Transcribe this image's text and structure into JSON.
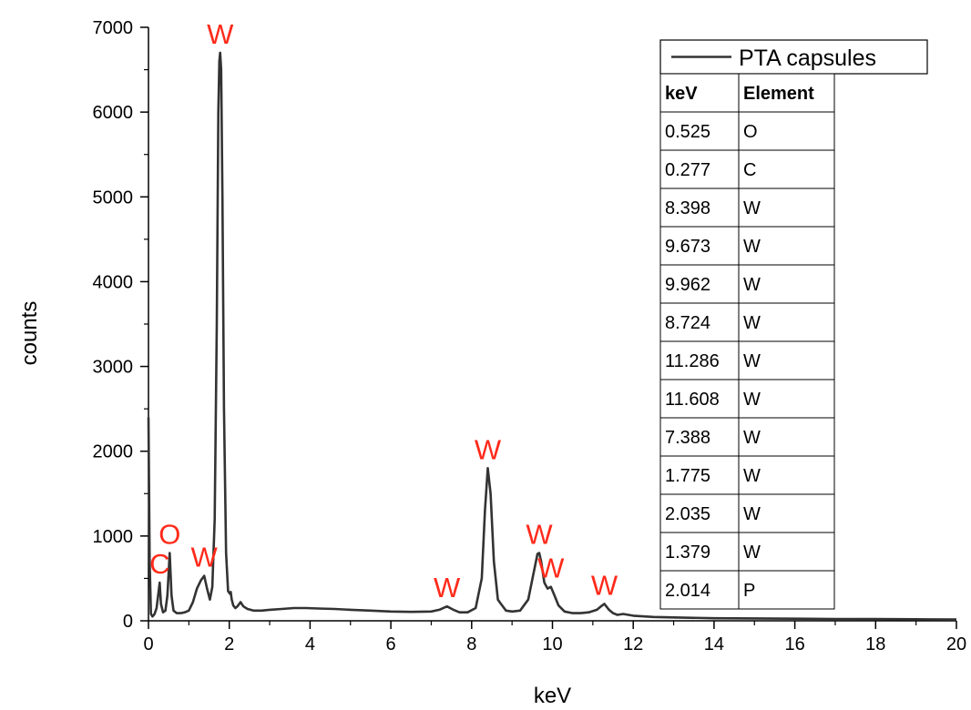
{
  "chart_data": {
    "type": "line",
    "xlabel": "keV",
    "ylabel": "counts",
    "xlim": [
      0,
      20
    ],
    "ylim": [
      0,
      7000
    ],
    "x_ticks": [
      "0",
      "2",
      "4",
      "6",
      "8",
      "10",
      "12",
      "14",
      "16",
      "18",
      "20"
    ],
    "y_ticks": [
      "0",
      "1000",
      "2000",
      "3000",
      "4000",
      "5000",
      "6000",
      "7000"
    ],
    "grid": false,
    "legend_position": "top-right",
    "series": [
      {
        "name": "PTA capsules",
        "color": "#333333",
        "x": [
          0.0,
          0.03,
          0.06,
          0.1,
          0.15,
          0.2,
          0.24,
          0.277,
          0.31,
          0.36,
          0.42,
          0.47,
          0.525,
          0.57,
          0.62,
          0.7,
          0.8,
          0.9,
          1.0,
          1.1,
          1.2,
          1.3,
          1.379,
          1.45,
          1.52,
          1.58,
          1.64,
          1.69,
          1.73,
          1.755,
          1.775,
          1.8,
          1.83,
          1.87,
          1.92,
          1.97,
          2.014,
          2.035,
          2.06,
          2.1,
          2.15,
          2.2,
          2.28,
          2.35,
          2.45,
          2.6,
          2.8,
          3.0,
          3.3,
          3.6,
          3.9,
          4.2,
          4.6,
          5.0,
          5.5,
          6.0,
          6.5,
          7.0,
          7.2,
          7.388,
          7.55,
          7.7,
          7.9,
          8.1,
          8.25,
          8.33,
          8.398,
          8.47,
          8.55,
          8.65,
          8.724,
          8.85,
          9.0,
          9.2,
          9.4,
          9.55,
          9.63,
          9.673,
          9.72,
          9.8,
          9.88,
          9.962,
          10.05,
          10.15,
          10.3,
          10.5,
          10.7,
          10.9,
          11.1,
          11.2,
          11.286,
          11.4,
          11.5,
          11.608,
          11.75,
          12.0,
          12.5,
          13.0,
          14.0,
          15.0,
          16.0,
          17.0,
          18.0,
          19.0,
          20.0
        ],
        "y": [
          2400,
          700,
          80,
          50,
          80,
          150,
          300,
          450,
          200,
          100,
          120,
          300,
          800,
          300,
          120,
          90,
          90,
          100,
          120,
          220,
          380,
          480,
          530,
          380,
          250,
          400,
          1200,
          3500,
          6000,
          6600,
          6700,
          6500,
          5000,
          2500,
          800,
          350,
          320,
          340,
          250,
          180,
          150,
          170,
          220,
          170,
          140,
          120,
          120,
          130,
          140,
          150,
          150,
          145,
          140,
          130,
          120,
          110,
          105,
          110,
          130,
          170,
          130,
          100,
          100,
          150,
          500,
          1300,
          1800,
          1500,
          700,
          250,
          200,
          120,
          110,
          120,
          250,
          600,
          790,
          800,
          700,
          450,
          380,
          400,
          300,
          180,
          110,
          90,
          90,
          100,
          130,
          170,
          200,
          130,
          90,
          70,
          80,
          60,
          45,
          40,
          30,
          28,
          25,
          22,
          20,
          18,
          15
        ]
      }
    ],
    "peak_annotations": [
      {
        "label": "C",
        "x": 0.277,
        "y": 450
      },
      {
        "label": "O",
        "x": 0.525,
        "y": 800
      },
      {
        "label": "W",
        "x": 1.379,
        "y": 530
      },
      {
        "label": "W",
        "x": 1.775,
        "y": 6700
      },
      {
        "label": "W",
        "x": 7.388,
        "y": 170
      },
      {
        "label": "W",
        "x": 8.398,
        "y": 1800
      },
      {
        "label": "W",
        "x": 9.673,
        "y": 800
      },
      {
        "label": "W",
        "x": 9.962,
        "y": 400
      },
      {
        "label": "W",
        "x": 11.286,
        "y": 200
      }
    ],
    "table": {
      "headers": [
        "keV",
        "Element"
      ],
      "rows": [
        [
          "0.525",
          "O"
        ],
        [
          "0.277",
          "C"
        ],
        [
          "8.398",
          "W"
        ],
        [
          "9.673",
          "W"
        ],
        [
          "9.962",
          "W"
        ],
        [
          "8.724",
          "W"
        ],
        [
          "11.286",
          "W"
        ],
        [
          "11.608",
          "W"
        ],
        [
          "7.388",
          "W"
        ],
        [
          "1.775",
          "W"
        ],
        [
          "2.035",
          "W"
        ],
        [
          "1.379",
          "W"
        ],
        [
          "2.014",
          "P"
        ]
      ]
    },
    "annotation_color": "#ff2a1a"
  }
}
